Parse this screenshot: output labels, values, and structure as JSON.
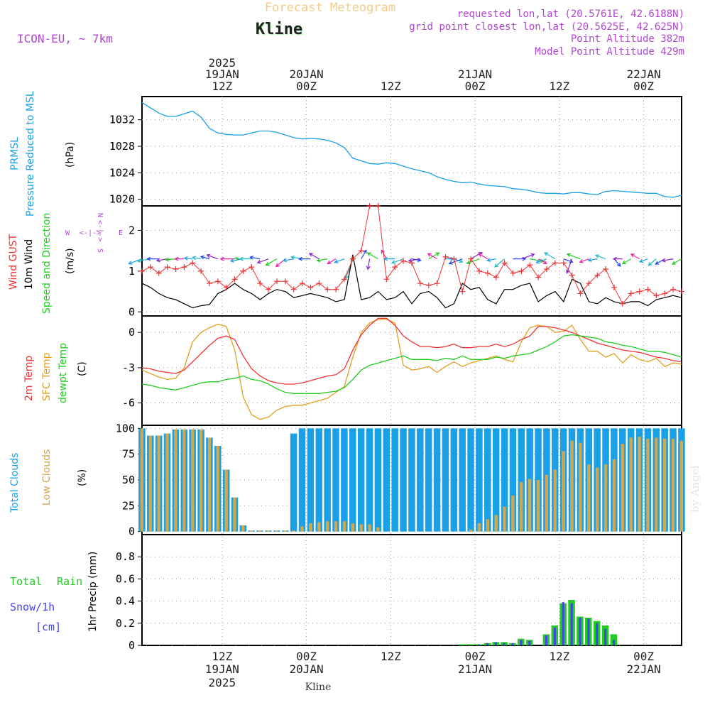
{
  "header": {
    "title": "Forecast Meteogram",
    "station": "Kline",
    "model": "ICON-EU, ~ 7km",
    "requested": "requested lon,lat (20.5761E, 42.6188N)",
    "gridpoint": "grid point closest lon,lat (20.5625E, 42.625N)",
    "point_alt": "Point Altitude 382m",
    "model_alt": "Model Point Altitude 429m",
    "footer": "Kline",
    "credit": "by Angel"
  },
  "time_axis": {
    "hours_start": 0,
    "hours_end": 64,
    "unit": "hours from 19JAN 00Z",
    "top_ticks": [
      {
        "h": 9.5,
        "l1": "2025",
        "l2": "19JAN",
        "l3": "12Z"
      },
      {
        "h": 19.5,
        "l1": "",
        "l2": "20JAN",
        "l3": "00Z"
      },
      {
        "h": 29.5,
        "l1": "",
        "l2": "",
        "l3": "12Z"
      },
      {
        "h": 39.5,
        "l1": "",
        "l2": "21JAN",
        "l3": "00Z"
      },
      {
        "h": 49.5,
        "l1": "",
        "l2": "",
        "l3": "12Z"
      },
      {
        "h": 59.5,
        "l1": "",
        "l2": "22JAN",
        "l3": "00Z"
      }
    ],
    "bottom_ticks": [
      {
        "h": 9.5,
        "l1": "12Z",
        "l2": "19JAN",
        "l3": "2025"
      },
      {
        "h": 19.5,
        "l1": "00Z",
        "l2": "20JAN",
        "l3": ""
      },
      {
        "h": 29.5,
        "l1": "12Z",
        "l2": "",
        "l3": ""
      },
      {
        "h": 39.5,
        "l1": "00Z",
        "l2": "21JAN",
        "l3": ""
      },
      {
        "h": 49.5,
        "l1": "12Z",
        "l2": "",
        "l3": ""
      },
      {
        "h": 59.5,
        "l1": "00Z",
        "l2": "22JAN",
        "l3": ""
      }
    ]
  },
  "colors": {
    "pressure": "#1aa0e6",
    "gust": "#ee3333",
    "wind": "#000000",
    "temp2m": "#ee3333",
    "sfc": "#e0a020",
    "dewpt": "#22cc22",
    "total_clouds": "#1aa0e6",
    "low_clouds": "#d4a84a",
    "rain": "#22cc22",
    "snow": "#4444ee",
    "header": "#b045d0",
    "title": "#f2cc88"
  },
  "panels": {
    "pressure": {
      "label_line1": "PRMSL",
      "label_line2": "Pressure Reduced to MSL",
      "unit": "(hPa)",
      "ylim": [
        1019,
        1035.5
      ],
      "yticks": [
        1020,
        1024,
        1028,
        1032
      ]
    },
    "wind": {
      "label_gust": "Wind GUST",
      "label_wind": "10m Wind",
      "label_dir": "Speed and Direction",
      "unit": "(m/s)",
      "compass": {
        "w": "W",
        "e": "E",
        "n": "N",
        "s": "S",
        "ew": "<-|->",
        "ns": "<-|->"
      },
      "ylim": [
        -0.1,
        2.6
      ],
      "yticks": [
        0,
        1,
        2
      ]
    },
    "temp": {
      "label_2m": "2m Temp",
      "label_sfc": "SFC Temp",
      "label_dew": "dewpt Temp",
      "unit": "(C)",
      "ylim": [
        -7.9,
        1.4
      ],
      "yticks": [
        -6,
        -3,
        0
      ]
    },
    "clouds": {
      "label_total": "Total Clouds",
      "label_low": "Low Clouds",
      "unit": "(%)",
      "ylim": [
        0,
        100
      ],
      "yticks": [
        0,
        25,
        50,
        75,
        100
      ]
    },
    "precip": {
      "label_rain_a": "Total",
      "label_rain_b": "Rain",
      "label_snow_a": "Snow/1h",
      "label_snow_b": "[cm]",
      "label_axis": "1hr Precip (mm)",
      "ylim": [
        0,
        1.0
      ],
      "yticks": [
        0,
        0.2,
        0.4,
        0.6,
        0.8
      ],
      "ytick_labels": [
        "0",
        "0.2",
        "0.4",
        "0.6",
        "0.8"
      ]
    }
  },
  "chart_data": {
    "type": "meteogram",
    "title": "Forecast Meteogram",
    "x_unit": "hours from 19JAN 00Z",
    "pressure": {
      "x": [
        0,
        1,
        2,
        3,
        4,
        5,
        6,
        7,
        8,
        9,
        10,
        11,
        12,
        13,
        14,
        15,
        16,
        17,
        18,
        19,
        20,
        21,
        22,
        23,
        24,
        25,
        26,
        27,
        28,
        29,
        30,
        31,
        32,
        33,
        34,
        35,
        36,
        37,
        38,
        39,
        40,
        41,
        42,
        43,
        44,
        45,
        46,
        47,
        48,
        49,
        50,
        51,
        52,
        53,
        54,
        55,
        56,
        57,
        58,
        59,
        60,
        61,
        62,
        63,
        64
      ],
      "y": [
        1034.6,
        1033.8,
        1033.0,
        1032.5,
        1032.5,
        1032.9,
        1033.3,
        1032.4,
        1030.7,
        1030.0,
        1029.8,
        1029.7,
        1029.7,
        1030.0,
        1030.3,
        1030.3,
        1030.1,
        1029.7,
        1029.3,
        1029.1,
        1029.2,
        1029.1,
        1028.9,
        1028.5,
        1027.8,
        1026.2,
        1025.8,
        1025.4,
        1025.3,
        1025.5,
        1025.4,
        1025.0,
        1024.6,
        1024.3,
        1024.0,
        1023.4,
        1023.0,
        1022.7,
        1022.5,
        1022.6,
        1022.3,
        1022.1,
        1022.0,
        1021.9,
        1021.6,
        1021.5,
        1021.3,
        1021.0,
        1020.9,
        1020.9,
        1020.8,
        1021.0,
        1021.0,
        1020.8,
        1020.7,
        1021.2,
        1021.3,
        1021.2,
        1021.1,
        1021.0,
        1020.9,
        1020.9,
        1020.4,
        1020.3,
        1020.6
      ]
    },
    "wind": {
      "x": [
        0,
        1,
        2,
        3,
        4,
        5,
        6,
        7,
        8,
        9,
        10,
        11,
        12,
        13,
        14,
        15,
        16,
        17,
        18,
        19,
        20,
        21,
        22,
        23,
        24,
        25,
        26,
        27,
        28,
        29,
        30,
        31,
        32,
        33,
        34,
        35,
        36,
        37,
        38,
        39,
        40,
        41,
        42,
        43,
        44,
        45,
        46,
        47,
        48,
        49,
        50,
        51,
        52,
        53,
        54,
        55,
        56,
        57,
        58,
        59,
        60,
        61,
        62,
        63,
        64
      ],
      "speed_10m": [
        0.7,
        0.6,
        0.45,
        0.35,
        0.3,
        0.2,
        0.1,
        0.15,
        0.18,
        0.45,
        0.55,
        0.7,
        0.55,
        0.45,
        0.3,
        0.45,
        0.55,
        0.5,
        0.35,
        0.4,
        0.45,
        0.4,
        0.35,
        0.25,
        0.3,
        1.4,
        0.3,
        0.35,
        0.5,
        0.3,
        0.35,
        0.5,
        0.2,
        0.45,
        0.5,
        0.35,
        0.1,
        0.2,
        0.7,
        0.55,
        0.6,
        0.3,
        0.2,
        0.55,
        0.55,
        0.65,
        0.7,
        0.25,
        0.4,
        0.5,
        0.25,
        0.8,
        0.7,
        0.25,
        0.2,
        0.35,
        0.25,
        0.2,
        0.25,
        0.25,
        0.15,
        0.3,
        0.35,
        0.4,
        0.35
      ],
      "gust": [
        1.0,
        1.1,
        0.95,
        1.1,
        1.05,
        1.1,
        1.2,
        1.0,
        0.7,
        0.75,
        0.6,
        0.8,
        1.0,
        1.1,
        0.7,
        0.55,
        0.75,
        0.75,
        0.55,
        0.7,
        0.6,
        0.7,
        0.55,
        0.55,
        0.8,
        1.3,
        1.5,
        2.6,
        2.6,
        0.8,
        1.1,
        1.25,
        1.2,
        0.7,
        0.65,
        0.7,
        1.35,
        1.3,
        0.5,
        1.3,
        1.0,
        0.95,
        0.85,
        1.2,
        0.95,
        1.0,
        1.15,
        0.85,
        1.05,
        1.2,
        1.2,
        0.9,
        0.45,
        0.7,
        0.9,
        1.05,
        0.6,
        0.2,
        0.45,
        0.5,
        0.55,
        0.4,
        0.45,
        0.55,
        0.5
      ],
      "dir_deg": [
        250,
        260,
        270,
        260,
        265,
        270,
        275,
        280,
        285,
        290,
        90,
        270,
        260,
        270,
        280,
        250,
        240,
        230,
        260,
        280,
        270,
        300,
        260,
        240,
        250,
        200,
        30,
        190,
        300,
        330,
        270,
        250,
        100,
        260,
        60,
        300,
        90,
        110,
        250,
        60,
        250,
        300,
        260,
        230,
        90,
        70,
        100,
        120,
        250,
        300,
        110,
        200,
        290,
        250,
        260,
        290,
        140,
        270,
        240,
        300,
        250,
        230,
        240,
        260,
        240
      ]
    },
    "temperature": {
      "x": [
        0,
        1,
        2,
        3,
        4,
        5,
        6,
        7,
        8,
        9,
        10,
        11,
        12,
        13,
        14,
        15,
        16,
        17,
        18,
        19,
        20,
        21,
        22,
        23,
        24,
        25,
        26,
        27,
        28,
        29,
        30,
        31,
        32,
        33,
        34,
        35,
        36,
        37,
        38,
        39,
        40,
        41,
        42,
        43,
        44,
        45,
        46,
        47,
        48,
        49,
        50,
        51,
        52,
        53,
        54,
        55,
        56,
        57,
        58,
        59,
        60,
        61,
        62,
        63,
        64
      ],
      "t2m": [
        -3.0,
        -3.1,
        -3.3,
        -3.4,
        -3.5,
        -3.2,
        -2.5,
        -1.8,
        -1.1,
        -0.5,
        -0.3,
        -0.6,
        -2.0,
        -3.1,
        -3.7,
        -4.1,
        -4.3,
        -4.4,
        -4.4,
        -4.3,
        -4.1,
        -3.9,
        -3.7,
        -3.6,
        -3.1,
        -1.5,
        -0.2,
        0.6,
        1.2,
        1.2,
        0.6,
        -0.3,
        -0.8,
        -1.2,
        -1.2,
        -1.3,
        -1.2,
        -1.0,
        -1.3,
        -1.3,
        -1.2,
        -1.2,
        -1.0,
        -1.2,
        -1.0,
        -0.6,
        -0.3,
        0.5,
        0.5,
        0.4,
        0.2,
        0.0,
        -0.3,
        -0.6,
        -0.9,
        -1.1,
        -1.3,
        -1.5,
        -1.6,
        -1.7,
        -1.9,
        -2.1,
        -2.2,
        -2.4,
        -2.5
      ],
      "sfc": [
        -3.2,
        -3.5,
        -3.8,
        -4.0,
        -3.9,
        -3.0,
        -0.8,
        0.0,
        0.4,
        0.7,
        0.5,
        -1.5,
        -5.5,
        -7.0,
        -7.4,
        -7.2,
        -6.6,
        -6.3,
        -6.2,
        -6.2,
        -6.0,
        -5.8,
        -5.6,
        -5.1,
        -4.6,
        -2.1,
        0.0,
        0.8,
        1.1,
        1.1,
        0.8,
        -2.8,
        -3.2,
        -3.1,
        -2.9,
        -3.4,
        -2.9,
        -2.5,
        -2.9,
        -2.6,
        -2.4,
        -2.2,
        -2.0,
        -2.3,
        -2.5,
        -0.8,
        0.4,
        0.6,
        0.5,
        0.0,
        0.1,
        0.6,
        -0.6,
        -1.6,
        -1.6,
        -2.1,
        -1.8,
        -2.6,
        -1.9,
        -2.3,
        -2.5,
        -2.2,
        -2.9,
        -2.6,
        -2.7
      ],
      "dewpt": [
        -4.4,
        -4.5,
        -4.7,
        -4.8,
        -4.9,
        -4.7,
        -4.5,
        -4.3,
        -4.2,
        -4.2,
        -4.0,
        -3.9,
        -3.7,
        -4.0,
        -4.1,
        -4.4,
        -4.8,
        -5.1,
        -5.2,
        -5.2,
        -5.2,
        -5.2,
        -5.1,
        -5.0,
        -4.7,
        -4.0,
        -3.2,
        -2.8,
        -2.6,
        -2.4,
        -2.2,
        -2.0,
        -2.3,
        -2.3,
        -2.3,
        -2.4,
        -2.2,
        -2.3,
        -2.0,
        -2.3,
        -2.3,
        -2.3,
        -2.1,
        -2.2,
        -2.0,
        -1.9,
        -1.8,
        -1.5,
        -1.2,
        -0.8,
        -0.3,
        -0.2,
        -0.3,
        -0.4,
        -0.5,
        -0.8,
        -0.9,
        -1.1,
        -1.2,
        -1.4,
        -1.6,
        -1.6,
        -1.7,
        -1.9,
        -2.1
      ]
    },
    "clouds": {
      "x": [
        0,
        1,
        2,
        3,
        4,
        5,
        6,
        7,
        8,
        9,
        10,
        11,
        12,
        13,
        14,
        15,
        16,
        17,
        18,
        19,
        20,
        21,
        22,
        23,
        24,
        25,
        26,
        27,
        28,
        29,
        30,
        31,
        32,
        33,
        34,
        35,
        36,
        37,
        38,
        39,
        40,
        41,
        42,
        43,
        44,
        45,
        46,
        47,
        48,
        49,
        50,
        51,
        52,
        53,
        54,
        55,
        56,
        57,
        58,
        59,
        60,
        61,
        62,
        63,
        64
      ],
      "total": [
        100,
        93,
        93,
        95,
        99,
        99,
        99,
        99,
        91,
        83,
        60,
        33,
        6,
        1,
        1,
        1,
        1,
        1,
        95,
        100,
        100,
        100,
        100,
        100,
        100,
        100,
        100,
        100,
        100,
        100,
        100,
        100,
        100,
        100,
        100,
        100,
        100,
        100,
        100,
        100,
        100,
        100,
        100,
        100,
        100,
        100,
        100,
        100,
        100,
        100,
        100,
        100,
        100,
        100,
        100,
        100,
        100,
        100,
        100,
        100,
        100,
        100,
        100,
        100,
        100
      ],
      "low": [
        100,
        93,
        93,
        95,
        99,
        99,
        99,
        99,
        91,
        83,
        60,
        33,
        6,
        1,
        1,
        1,
        1,
        1,
        1,
        5,
        8,
        9,
        10,
        10,
        10,
        8,
        7,
        7,
        4,
        0,
        0,
        0,
        0,
        0,
        0,
        0,
        0,
        0,
        0,
        2,
        8,
        12,
        16,
        24,
        35,
        48,
        51,
        50,
        55,
        60,
        78,
        88,
        86,
        65,
        62,
        65,
        70,
        85,
        91,
        92,
        90,
        91,
        90,
        90,
        88
      ]
    },
    "precip": {
      "x": [
        38,
        39,
        40,
        41,
        42,
        43,
        44,
        45,
        46,
        47,
        48,
        49,
        50,
        51,
        52,
        53,
        54,
        55,
        56
      ],
      "rain": [
        0.01,
        0.01,
        0.01,
        0.02,
        0.03,
        0.03,
        0.02,
        0.06,
        0.05,
        0.0,
        0.1,
        0.18,
        0.38,
        0.41,
        0.26,
        0.25,
        0.22,
        0.18,
        0.1
      ],
      "snow": [
        0.0,
        0.0,
        0.01,
        0.02,
        0.03,
        0.02,
        0.02,
        0.05,
        0.04,
        0.0,
        0.09,
        0.16,
        0.39,
        0.38,
        0.25,
        0.24,
        0.2,
        0.15,
        0.05
      ]
    }
  }
}
